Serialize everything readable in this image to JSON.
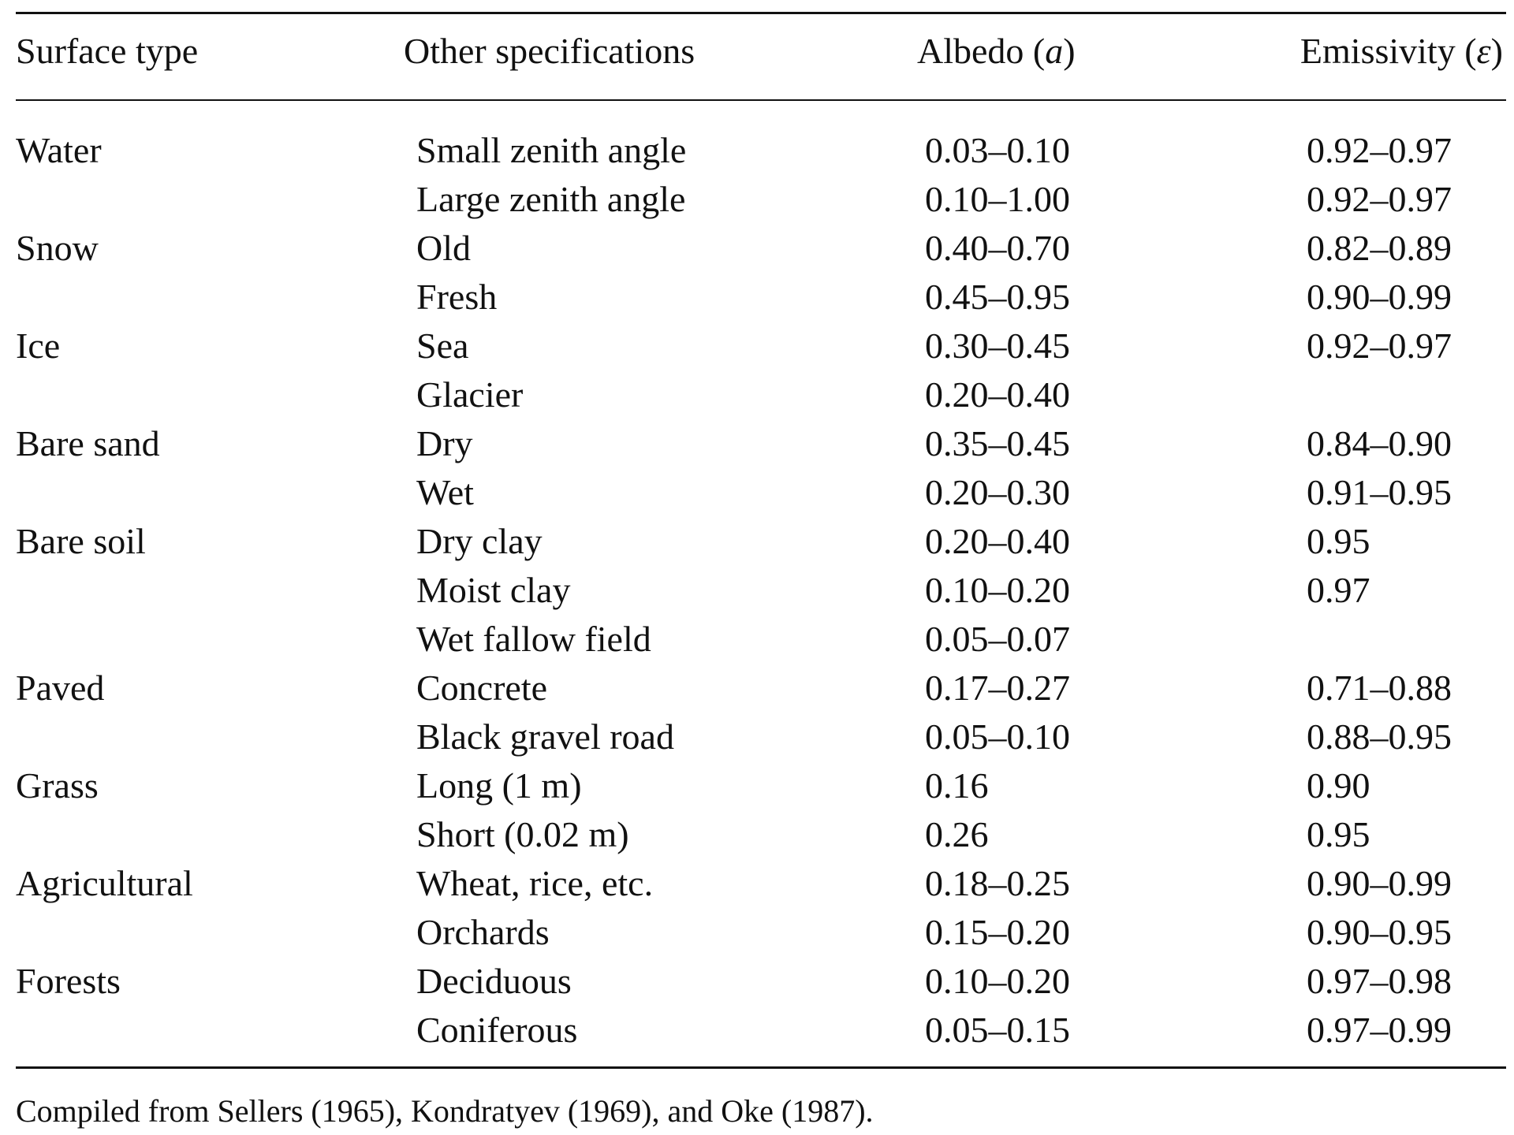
{
  "table": {
    "headers": {
      "surface_type": "Surface type",
      "other_specifications": "Other specifications",
      "albedo": "Albedo (a)",
      "emissivity": "Emissivity (ε)"
    },
    "rows": [
      {
        "surface": "Water",
        "spec": "Small zenith angle",
        "albedo": "0.03–0.10",
        "emissivity": "0.92–0.97"
      },
      {
        "surface": "",
        "spec": "Large zenith angle",
        "albedo": "0.10–1.00",
        "emissivity": "0.92–0.97"
      },
      {
        "surface": "Snow",
        "spec": "Old",
        "albedo": "0.40–0.70",
        "emissivity": "0.82–0.89"
      },
      {
        "surface": "",
        "spec": "Fresh",
        "albedo": "0.45–0.95",
        "emissivity": "0.90–0.99"
      },
      {
        "surface": "Ice",
        "spec": "Sea",
        "albedo": "0.30–0.45",
        "emissivity": "0.92–0.97"
      },
      {
        "surface": "",
        "spec": "Glacier",
        "albedo": "0.20–0.40",
        "emissivity": ""
      },
      {
        "surface": "Bare sand",
        "spec": "Dry",
        "albedo": "0.35–0.45",
        "emissivity": "0.84–0.90"
      },
      {
        "surface": "",
        "spec": "Wet",
        "albedo": "0.20–0.30",
        "emissivity": "0.91–0.95"
      },
      {
        "surface": "Bare soil",
        "spec": "Dry clay",
        "albedo": "0.20–0.40",
        "emissivity": "0.95"
      },
      {
        "surface": "",
        "spec": "Moist clay",
        "albedo": "0.10–0.20",
        "emissivity": "0.97"
      },
      {
        "surface": "",
        "spec": "Wet fallow field",
        "albedo": "0.05–0.07",
        "emissivity": ""
      },
      {
        "surface": "Paved",
        "spec": "Concrete",
        "albedo": "0.17–0.27",
        "emissivity": "0.71–0.88"
      },
      {
        "surface": "",
        "spec": "Black gravel road",
        "albedo": "0.05–0.10",
        "emissivity": "0.88–0.95"
      },
      {
        "surface": "Grass",
        "spec": "Long (1 m)",
        "albedo": "0.16",
        "emissivity": "0.90"
      },
      {
        "surface": "",
        "spec": "Short (0.02 m)",
        "albedo": "0.26",
        "emissivity": "0.95"
      },
      {
        "surface": "Agricultural",
        "spec": "Wheat, rice, etc.",
        "albedo": "0.18–0.25",
        "emissivity": "0.90–0.99"
      },
      {
        "surface": "",
        "spec": "Orchards",
        "albedo": "0.15–0.20",
        "emissivity": "0.90–0.95"
      },
      {
        "surface": "Forests",
        "spec": "Deciduous",
        "albedo": "0.10–0.20",
        "emissivity": "0.97–0.98"
      },
      {
        "surface": "",
        "spec": "Coniferous",
        "albedo": "0.05–0.15",
        "emissivity": "0.97–0.99"
      }
    ],
    "footnote": "Compiled from Sellers (1965), Kondratyev (1969), and Oke (1987)."
  }
}
